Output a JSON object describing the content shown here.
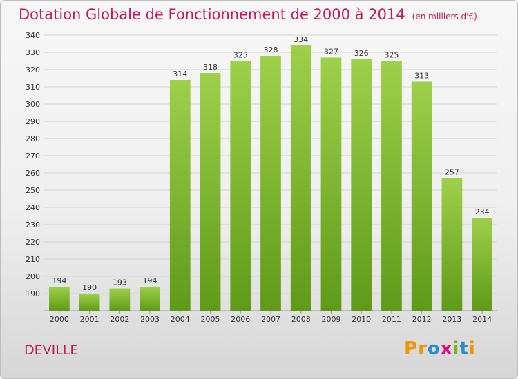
{
  "header": {
    "title": "Dotation Globale de Fonctionnement de 2000 à 2014",
    "unit": "(en milliers d'€)"
  },
  "commune": "DEVILLE",
  "logo": {
    "text": "Proxiti",
    "letters": [
      "P",
      "r",
      "o",
      "x",
      "i",
      "t",
      "i"
    ]
  },
  "colors": {
    "bar_top": "#9ed04a",
    "bar_bottom": "#5f9a18",
    "title": "#c2185b",
    "logo": [
      "#f39200",
      "#f39200",
      "#2e8bc9",
      "#e4007c",
      "#7ab51d",
      "#2e8bc9",
      "#f39200"
    ]
  },
  "chart_data": {
    "type": "bar",
    "categories": [
      "2000",
      "2001",
      "2002",
      "2003",
      "2004",
      "2005",
      "2006",
      "2007",
      "2008",
      "2009",
      "2010",
      "2011",
      "2012",
      "2013",
      "2014"
    ],
    "values": [
      194,
      190,
      193,
      194,
      314,
      318,
      325,
      328,
      334,
      327,
      326,
      325,
      313,
      257,
      234
    ],
    "ylim": [
      180,
      340
    ],
    "yticks": [
      180,
      190,
      200,
      210,
      220,
      230,
      240,
      250,
      260,
      270,
      280,
      290,
      300,
      310,
      320,
      330,
      340
    ],
    "grid": true,
    "legend": "none"
  }
}
